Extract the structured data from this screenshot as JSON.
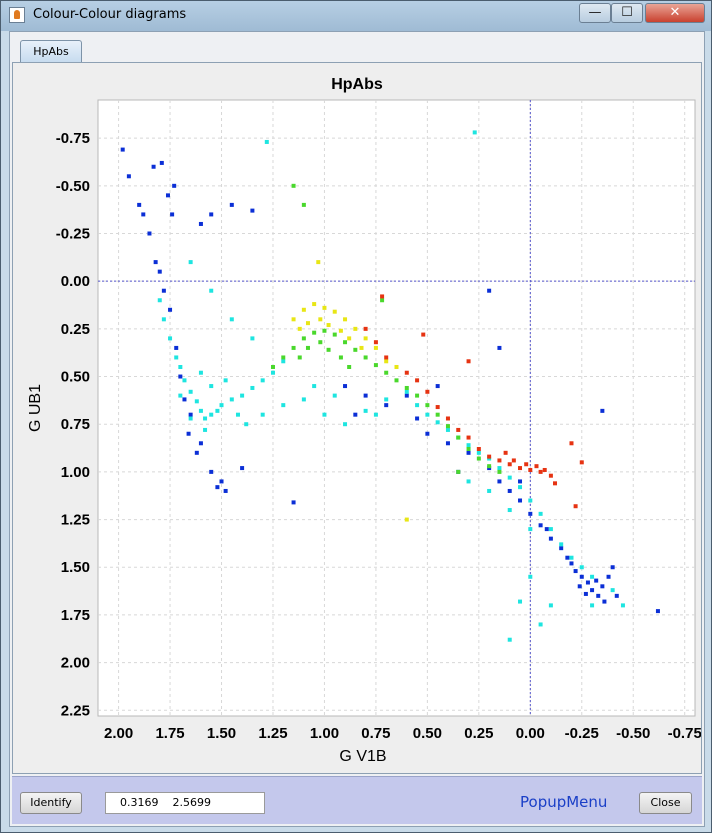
{
  "window": {
    "title": "Colour-Colour diagrams",
    "icon": "java-cup-icon",
    "controls": {
      "minimize": "—",
      "maximize": "☐",
      "close": "✕"
    }
  },
  "tabs": [
    {
      "label": "HpAbs",
      "selected": true
    }
  ],
  "bottom_bar": {
    "identify_label": "Identify",
    "coordinate_value": "0.3169    2.5699",
    "popup_label": "PopupMenu",
    "close_label": "Close"
  },
  "colors": {
    "blue": "#0b2fd6",
    "cyan": "#1ee5e0",
    "green": "#4ad82c",
    "yellow": "#e8e615",
    "red": "#e63312",
    "crosshair": "#5555cc"
  },
  "chart_data": {
    "type": "scatter",
    "title": "HpAbs",
    "xlabel": "G V1B",
    "ylabel": "G UB1",
    "xlim": [
      2.1,
      -0.8
    ],
    "ylim": [
      -0.95,
      2.28
    ],
    "x_ticks": [
      "2.00",
      "1.75",
      "1.50",
      "1.25",
      "1.00",
      "0.75",
      "0.50",
      "0.25",
      "0.00",
      "-0.25",
      "-0.50",
      "-0.75"
    ],
    "y_ticks": [
      "-0.75",
      "-0.50",
      "-0.25",
      "0.00",
      "0.25",
      "0.50",
      "0.75",
      "1.00",
      "1.25",
      "1.50",
      "1.75",
      "2.00",
      "2.25"
    ],
    "x_inverted": true,
    "y_inverted": true,
    "grid": true,
    "crosshair": {
      "x": 0.0,
      "y": 0.0
    },
    "color_scale": "blue-cyan-green-yellow-red (by absolute magnitude)",
    "series": [
      {
        "color": "blue",
        "points": [
          [
            1.98,
            -0.69
          ],
          [
            1.95,
            -0.55
          ],
          [
            1.9,
            -0.4
          ],
          [
            1.88,
            -0.35
          ],
          [
            1.85,
            -0.25
          ],
          [
            1.82,
            -0.1
          ],
          [
            1.8,
            -0.05
          ],
          [
            1.78,
            0.05
          ],
          [
            1.75,
            0.15
          ],
          [
            1.72,
            0.35
          ],
          [
            1.7,
            0.5
          ],
          [
            1.68,
            0.62
          ],
          [
            1.65,
            0.7
          ],
          [
            1.66,
            0.8
          ],
          [
            1.6,
            0.85
          ],
          [
            1.55,
            1.0
          ],
          [
            1.5,
            1.05
          ],
          [
            1.48,
            1.1
          ],
          [
            1.52,
            1.08
          ],
          [
            1.62,
            0.9
          ],
          [
            1.4,
            0.98
          ],
          [
            1.83,
            -0.6
          ],
          [
            1.79,
            -0.62
          ],
          [
            1.76,
            -0.45
          ],
          [
            1.74,
            -0.35
          ],
          [
            1.73,
            -0.5
          ],
          [
            1.6,
            -0.3
          ],
          [
            1.55,
            -0.35
          ],
          [
            1.45,
            -0.4
          ],
          [
            1.35,
            -0.37
          ],
          [
            1.15,
            1.16
          ],
          [
            0.9,
            0.55
          ],
          [
            0.85,
            0.7
          ],
          [
            0.8,
            0.6
          ],
          [
            0.7,
            0.65
          ],
          [
            0.6,
            0.6
          ],
          [
            0.55,
            0.72
          ],
          [
            0.5,
            0.8
          ],
          [
            0.4,
            0.85
          ],
          [
            0.3,
            0.9
          ],
          [
            0.2,
            0.98
          ],
          [
            0.15,
            1.05
          ],
          [
            0.1,
            1.1
          ],
          [
            0.05,
            1.15
          ],
          [
            0.0,
            1.22
          ],
          [
            -0.05,
            1.28
          ],
          [
            -0.1,
            1.35
          ],
          [
            -0.15,
            1.4
          ],
          [
            -0.2,
            1.48
          ],
          [
            -0.22,
            1.52
          ],
          [
            -0.25,
            1.55
          ],
          [
            -0.28,
            1.58
          ],
          [
            -0.3,
            1.62
          ],
          [
            -0.32,
            1.57
          ],
          [
            -0.35,
            1.6
          ],
          [
            -0.38,
            1.55
          ],
          [
            -0.4,
            1.5
          ],
          [
            -0.42,
            1.65
          ],
          [
            -0.36,
            1.68
          ],
          [
            -0.27,
            1.64
          ],
          [
            -0.62,
            1.73
          ],
          [
            -0.35,
            0.68
          ],
          [
            0.2,
            0.05
          ],
          [
            0.15,
            0.35
          ],
          [
            0.45,
            0.55
          ],
          [
            0.65,
            0.45
          ],
          [
            0.35,
            1.0
          ],
          [
            0.05,
            1.05
          ],
          [
            -0.08,
            1.3
          ],
          [
            -0.18,
            1.45
          ],
          [
            -0.24,
            1.6
          ],
          [
            -0.33,
            1.65
          ]
        ]
      },
      {
        "color": "cyan",
        "points": [
          [
            1.8,
            0.1
          ],
          [
            1.78,
            0.2
          ],
          [
            1.75,
            0.3
          ],
          [
            1.72,
            0.4
          ],
          [
            1.7,
            0.45
          ],
          [
            1.68,
            0.52
          ],
          [
            1.65,
            0.58
          ],
          [
            1.62,
            0.63
          ],
          [
            1.6,
            0.68
          ],
          [
            1.58,
            0.72
          ],
          [
            1.55,
            0.7
          ],
          [
            1.52,
            0.68
          ],
          [
            1.5,
            0.65
          ],
          [
            1.45,
            0.62
          ],
          [
            1.4,
            0.6
          ],
          [
            1.35,
            0.56
          ],
          [
            1.3,
            0.52
          ],
          [
            1.25,
            0.48
          ],
          [
            1.2,
            0.42
          ],
          [
            1.6,
            0.48
          ],
          [
            1.55,
            0.55
          ],
          [
            1.48,
            0.52
          ],
          [
            1.42,
            0.7
          ],
          [
            1.38,
            0.75
          ],
          [
            1.7,
            0.6
          ],
          [
            1.65,
            0.72
          ],
          [
            1.58,
            0.78
          ],
          [
            1.3,
            0.7
          ],
          [
            1.2,
            0.65
          ],
          [
            1.1,
            0.62
          ],
          [
            1.05,
            0.55
          ],
          [
            1.0,
            0.7
          ],
          [
            0.95,
            0.6
          ],
          [
            0.9,
            0.75
          ],
          [
            0.8,
            0.68
          ],
          [
            0.75,
            0.7
          ],
          [
            0.7,
            0.62
          ],
          [
            0.6,
            0.58
          ],
          [
            0.55,
            0.65
          ],
          [
            0.5,
            0.7
          ],
          [
            0.45,
            0.74
          ],
          [
            0.4,
            0.78
          ],
          [
            0.35,
            0.82
          ],
          [
            0.3,
            0.86
          ],
          [
            0.25,
            0.9
          ],
          [
            0.2,
            0.93
          ],
          [
            0.15,
            0.98
          ],
          [
            0.1,
            1.03
          ],
          [
            0.05,
            1.08
          ],
          [
            0.0,
            1.15
          ],
          [
            -0.05,
            1.22
          ],
          [
            -0.1,
            1.3
          ],
          [
            -0.15,
            1.38
          ],
          [
            -0.2,
            1.45
          ],
          [
            -0.25,
            1.5
          ],
          [
            -0.3,
            1.55
          ],
          [
            -0.4,
            1.62
          ],
          [
            -0.45,
            1.7
          ],
          [
            0.0,
            1.55
          ],
          [
            0.05,
            1.68
          ],
          [
            -0.1,
            1.7
          ],
          [
            -0.05,
            1.8
          ],
          [
            0.1,
            1.88
          ],
          [
            -0.3,
            1.7
          ],
          [
            1.28,
            -0.73
          ],
          [
            0.27,
            -0.78
          ],
          [
            1.65,
            -0.1
          ],
          [
            1.55,
            0.05
          ],
          [
            1.45,
            0.2
          ],
          [
            1.35,
            0.3
          ],
          [
            0.3,
            1.05
          ],
          [
            0.2,
            1.1
          ],
          [
            0.1,
            1.2
          ],
          [
            0.0,
            1.3
          ]
        ]
      },
      {
        "color": "green",
        "points": [
          [
            1.25,
            0.45
          ],
          [
            1.2,
            0.4
          ],
          [
            1.15,
            0.35
          ],
          [
            1.1,
            0.3
          ],
          [
            1.05,
            0.27
          ],
          [
            1.0,
            0.26
          ],
          [
            0.95,
            0.28
          ],
          [
            0.9,
            0.32
          ],
          [
            0.85,
            0.36
          ],
          [
            0.8,
            0.4
          ],
          [
            0.75,
            0.44
          ],
          [
            0.7,
            0.48
          ],
          [
            0.65,
            0.52
          ],
          [
            0.6,
            0.56
          ],
          [
            0.55,
            0.6
          ],
          [
            0.5,
            0.65
          ],
          [
            0.45,
            0.7
          ],
          [
            0.4,
            0.76
          ],
          [
            0.35,
            0.82
          ],
          [
            0.3,
            0.88
          ],
          [
            0.25,
            0.93
          ],
          [
            0.2,
            0.97
          ],
          [
            0.15,
            1.0
          ],
          [
            1.12,
            0.4
          ],
          [
            1.08,
            0.35
          ],
          [
            1.02,
            0.32
          ],
          [
            0.98,
            0.36
          ],
          [
            0.92,
            0.4
          ],
          [
            0.88,
            0.45
          ],
          [
            1.15,
            -0.5
          ],
          [
            1.1,
            -0.4
          ],
          [
            0.72,
            0.1
          ],
          [
            0.35,
            1.0
          ]
        ]
      },
      {
        "color": "yellow",
        "points": [
          [
            1.15,
            0.2
          ],
          [
            1.1,
            0.15
          ],
          [
            1.05,
            0.12
          ],
          [
            1.0,
            0.14
          ],
          [
            0.95,
            0.16
          ],
          [
            0.9,
            0.2
          ],
          [
            0.85,
            0.25
          ],
          [
            0.8,
            0.3
          ],
          [
            0.75,
            0.35
          ],
          [
            0.7,
            0.42
          ],
          [
            0.65,
            0.45
          ],
          [
            1.12,
            0.25
          ],
          [
            1.08,
            0.22
          ],
          [
            1.02,
            0.2
          ],
          [
            0.98,
            0.23
          ],
          [
            0.92,
            0.26
          ],
          [
            0.88,
            0.3
          ],
          [
            0.82,
            0.35
          ],
          [
            1.03,
            -0.1
          ],
          [
            0.6,
            1.25
          ]
        ]
      },
      {
        "color": "red",
        "points": [
          [
            0.8,
            0.25
          ],
          [
            0.75,
            0.32
          ],
          [
            0.7,
            0.4
          ],
          [
            0.6,
            0.48
          ],
          [
            0.55,
            0.52
          ],
          [
            0.5,
            0.58
          ],
          [
            0.45,
            0.66
          ],
          [
            0.4,
            0.72
          ],
          [
            0.35,
            0.78
          ],
          [
            0.3,
            0.82
          ],
          [
            0.25,
            0.88
          ],
          [
            0.2,
            0.92
          ],
          [
            0.15,
            0.94
          ],
          [
            0.1,
            0.96
          ],
          [
            0.05,
            0.98
          ],
          [
            0.0,
            0.99
          ],
          [
            -0.05,
            1.0
          ],
          [
            -0.1,
            1.02
          ],
          [
            -0.12,
            1.06
          ],
          [
            0.12,
            0.9
          ],
          [
            0.08,
            0.94
          ],
          [
            0.02,
            0.96
          ],
          [
            -0.03,
            0.97
          ],
          [
            -0.07,
            0.99
          ],
          [
            -0.2,
            0.85
          ],
          [
            -0.25,
            0.95
          ],
          [
            -0.22,
            1.18
          ],
          [
            0.3,
            0.42
          ],
          [
            0.72,
            0.08
          ],
          [
            0.52,
            0.28
          ]
        ]
      }
    ]
  }
}
